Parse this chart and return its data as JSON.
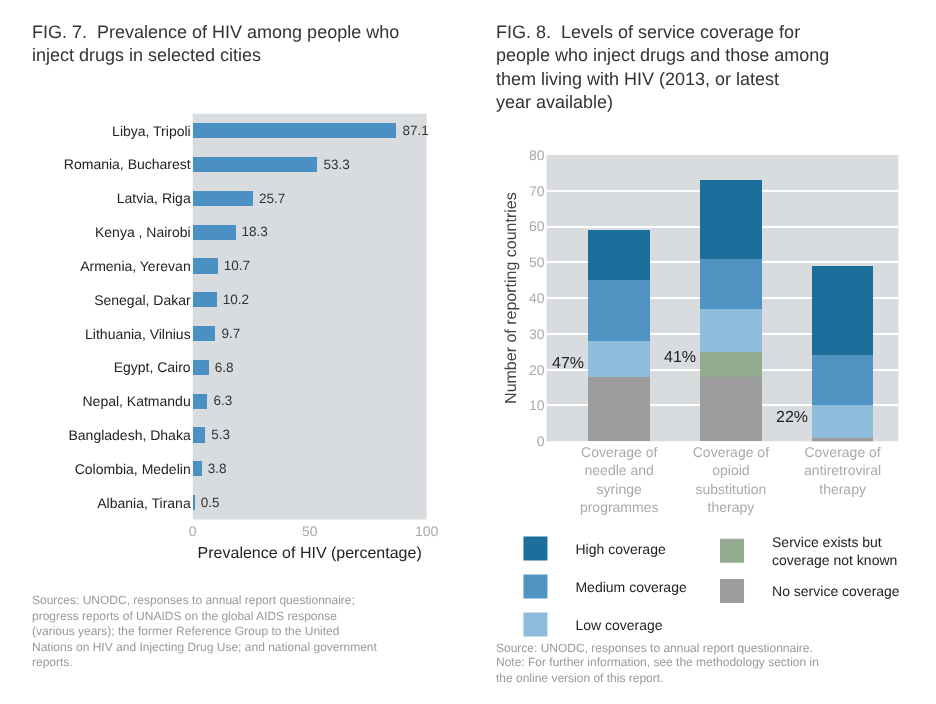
{
  "chart_data": [
    {
      "type": "bar",
      "orientation": "horizontal",
      "title": "FIG. 7.  Prevalence of HIV among people who inject drugs in selected cities",
      "xlabel": "Prevalence of HIV (percentage)",
      "categories": [
        "Libya, Tripoli",
        "Romania, Bucharest",
        "Latvia, Riga",
        "Kenya , Nairobi",
        "Armenia, Yerevan",
        "Senegal, Dakar",
        "Lithuania, Vilnius",
        "Egypt, Cairo",
        "Nepal, Katmandu",
        "Bangladesh, Dhaka",
        "Colombia, Medelin",
        "Albania, Tirana"
      ],
      "values": [
        87.1,
        53.3,
        25.7,
        18.3,
        10.7,
        10.2,
        9.7,
        6.8,
        6.3,
        5.3,
        3.8,
        0.5
      ],
      "color": "#4a90c2",
      "xlim": [
        0,
        100
      ],
      "xticks": [
        0,
        50,
        100
      ],
      "data_labels": true,
      "grid": false,
      "legend": false,
      "annotations": [
        "Sources: UNODC, responses to annual report questionnaire; progress reports of UNAIDS on the global AIDS response (various years); the former Reference Group to the United Nations on HIV and Injecting Drug Use; and national government reports."
      ]
    },
    {
      "type": "bar",
      "stacked": true,
      "title": "FIG. 8.  Levels of service coverage for people who inject drugs and those among them living with HIV (2013, or latest year available)",
      "ylabel": "Number of reporting countries",
      "categories": [
        "Coverage of needle and syringe programmes",
        "Coverage of opioid substitution therapy",
        "Coverage of antiretroviral therapy"
      ],
      "series": [
        {
          "name": "No service coverage",
          "color": "#9d9d9d",
          "values": [
            18,
            18,
            1
          ]
        },
        {
          "name": "Service exists but coverage not known",
          "color": "#93ab8e",
          "values": [
            0,
            7,
            0
          ]
        },
        {
          "name": "Low coverage",
          "color": "#8fbcda",
          "values": [
            10,
            12,
            9
          ]
        },
        {
          "name": "Medium coverage",
          "color": "#4f94c2",
          "values": [
            17,
            14,
            14
          ]
        },
        {
          "name": "High coverage",
          "color": "#1c6e9b",
          "values": [
            14,
            22,
            25
          ]
        }
      ],
      "ylim": [
        0,
        80
      ],
      "yticks": [
        0,
        10,
        20,
        30,
        40,
        50,
        60,
        70,
        80
      ],
      "grid": "y",
      "legend": "bottom",
      "annotations": [
        {
          "text": "47%",
          "x": "Coverage of needle and syringe programmes",
          "y": 18
        },
        {
          "text": "41%",
          "x": "Coverage of opioid substitution therapy",
          "y": 20
        },
        {
          "text": "22%",
          "x": "Coverage of antiretroviral therapy",
          "y": 3
        },
        "Source: UNODC, responses to annual report questionnaire.",
        "Note: For further information, see the methodology section in the online version of this report."
      ]
    }
  ]
}
